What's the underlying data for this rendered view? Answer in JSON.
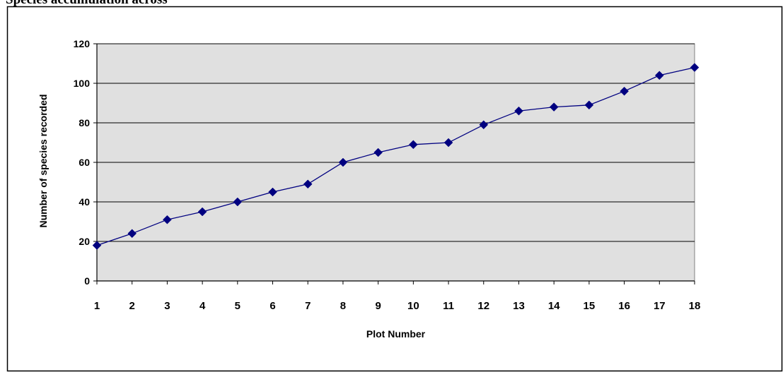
{
  "header": {
    "title": "Species accumulation across"
  },
  "colors": {
    "plot_background": "#e0e0e0",
    "series_color": "#000080",
    "gridline_color": "#000000"
  },
  "chart_data": {
    "type": "line",
    "title": "",
    "xlabel": "Plot Number",
    "ylabel": "Number of species recorded",
    "x": [
      1,
      2,
      3,
      4,
      5,
      6,
      7,
      8,
      9,
      10,
      11,
      12,
      13,
      14,
      15,
      16,
      17,
      18
    ],
    "series": [
      {
        "values": [
          18,
          24,
          31,
          35,
          40,
          45,
          49,
          60,
          65,
          69,
          70,
          79,
          86,
          88,
          89,
          96,
          104,
          108
        ]
      }
    ],
    "xlim": [
      1,
      18
    ],
    "ylim": [
      0,
      120
    ],
    "yticks": [
      0,
      20,
      40,
      60,
      80,
      100,
      120
    ],
    "xticks": [
      1,
      2,
      3,
      4,
      5,
      6,
      7,
      8,
      9,
      10,
      11,
      12,
      13,
      14,
      15,
      16,
      17,
      18
    ],
    "grid": "horizontal",
    "legend": "none",
    "marker": "diamond"
  }
}
